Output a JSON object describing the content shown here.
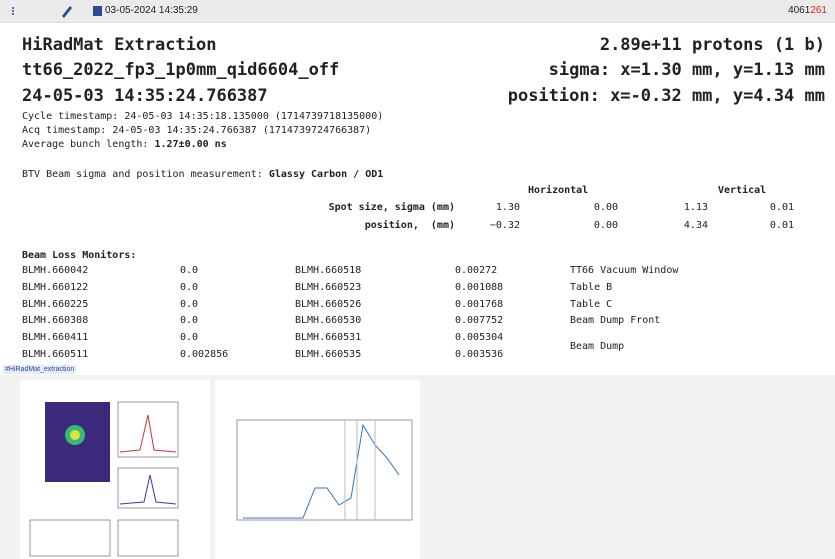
{
  "toolbar": {
    "datetime": "03-05-2024 14:35:29",
    "id_main": "4061",
    "id_suffix": "261"
  },
  "title": {
    "left": [
      "HiRadMat Extraction",
      "tt66_2022_fp3_1p0mm_qid6604_off",
      "24-05-03 14:35:24.766387"
    ],
    "right": [
      "2.89e+11 protons (1 b)",
      "sigma: x=1.30 mm, y=1.13 mm",
      "position: x=-0.32 mm, y=4.34 mm"
    ]
  },
  "info": {
    "cycle": "Cycle timestamp: 24-05-03 14:35:18.135000 (1714739718135000)",
    "acq": "Acq timestamp: 24-05-03 14:35:24.766387 (1714739724766387)",
    "bunch_label": "Average bunch length:",
    "bunch_value": "1.27±0.00 ns"
  },
  "btv": {
    "label": "BTV Beam sigma and position measurement:",
    "screen": "Glassy Carbon / OD1",
    "horizontal": "Horizontal",
    "vertical": "Vertical",
    "rows": [
      [
        "Spot size, sigma (mm)",
        "1.30",
        "0.00",
        "1.13",
        "0.01"
      ],
      [
        "position,  (mm)",
        "−0.32",
        "0.00",
        "4.34",
        "0.01"
      ]
    ]
  },
  "blm": {
    "title": "Beam Loss Monitors:",
    "rows": [
      [
        "BLMH.660042",
        "0.0",
        "BLMH.660518",
        "0.00272"
      ],
      [
        "BLMH.660122",
        "0.0",
        "BLMH.660523",
        "0.001088"
      ],
      [
        "BLMH.660225",
        "0.0",
        "BLMH.660526",
        "0.001768"
      ],
      [
        "BLMH.660308",
        "0.0",
        "BLMH.660530",
        "0.007752"
      ],
      [
        "BLMH.660411",
        "0.0",
        "BLMH.660531",
        "0.005304"
      ],
      [
        "BLMH.660511",
        "0.002856",
        "BLMH.660535",
        "0.003536"
      ]
    ],
    "labels": [
      "TT66 Vacuum Window",
      "Table B",
      "Table C",
      "Beam Dump Front",
      "Beam Dump"
    ]
  },
  "tag": "#HiRadMat_extraction"
}
